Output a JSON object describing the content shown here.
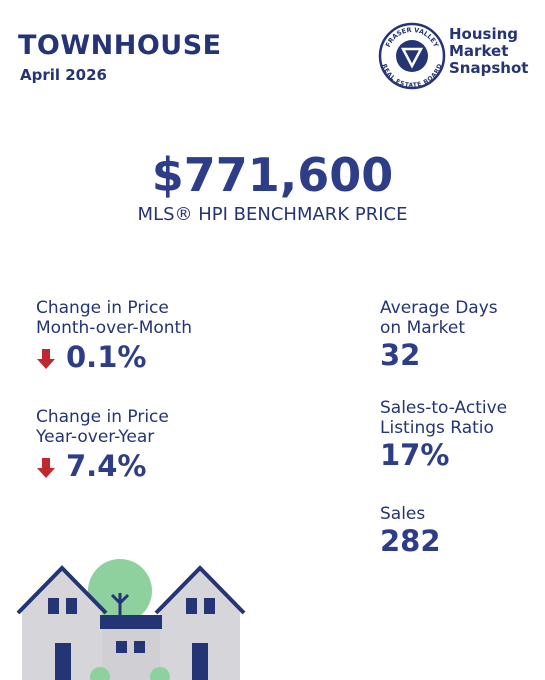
{
  "header": {
    "title": "TOWNHOUSE",
    "date": "April 2026"
  },
  "logo": {
    "ring_top": "FRASER VALLEY",
    "ring_bottom": "REAL ESTATE BOARD",
    "title": [
      "Housing",
      "Market",
      "Snapshot"
    ]
  },
  "benchmark": {
    "price": "$771,600",
    "label": "MLS® HPI BENCHMARK PRICE"
  },
  "left_stats": [
    {
      "label": [
        "Change in Price",
        "Month-over-Month"
      ],
      "value": "0.1%"
    },
    {
      "label": [
        "Change in Price",
        "Year-over-Year"
      ],
      "value": "7.4%"
    }
  ],
  "right_stats": [
    {
      "label": [
        "Average Days",
        "on Market"
      ],
      "value": "32"
    },
    {
      "label": [
        "Sales-to-Active",
        "Listings Ratio"
      ],
      "value": "17%"
    },
    {
      "label": [
        "Sales"
      ],
      "value": "282"
    }
  ]
}
